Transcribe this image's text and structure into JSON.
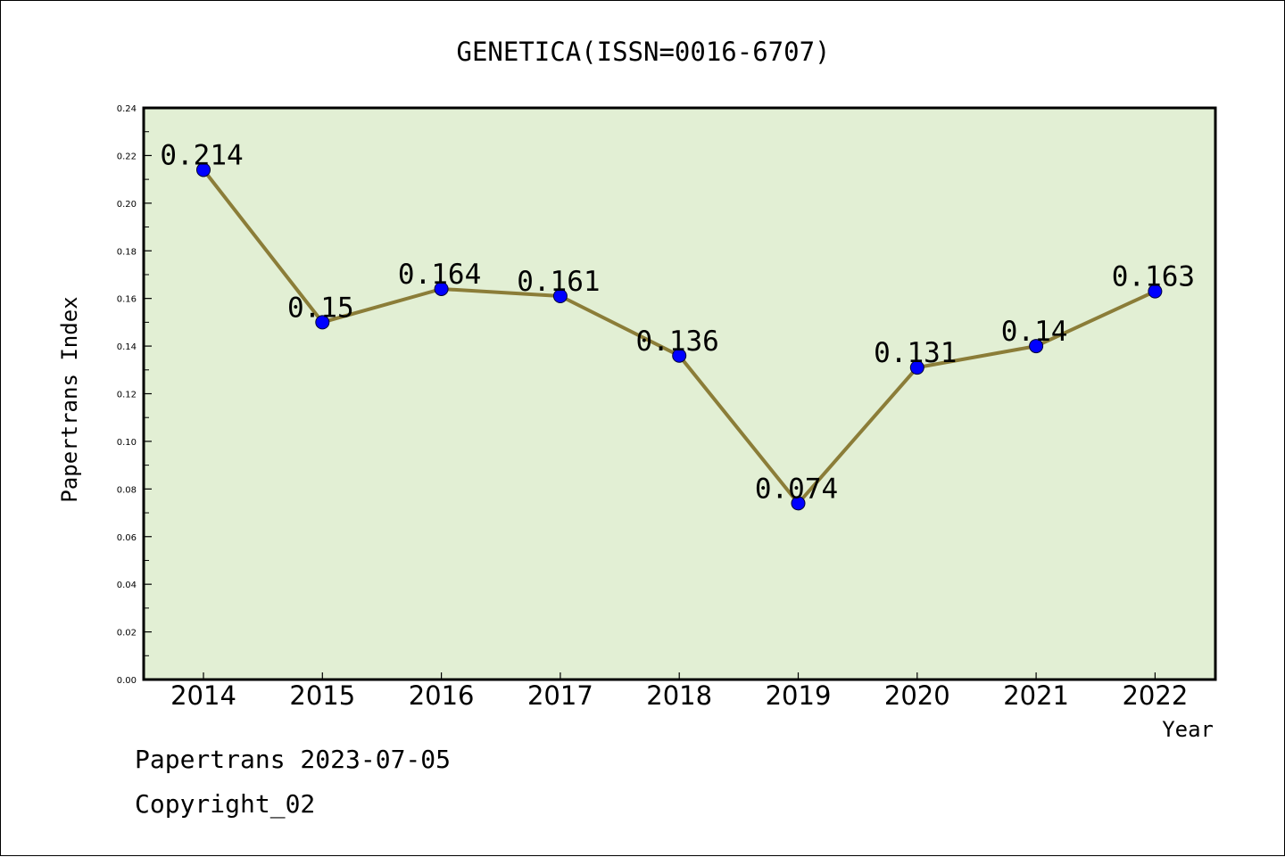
{
  "chart_data": {
    "type": "line",
    "title": "GENETICA(ISSN=0016-6707)",
    "xlabel": "Year",
    "ylabel": "Papertrans Index",
    "categories": [
      "2014",
      "2015",
      "2016",
      "2017",
      "2018",
      "2019",
      "2020",
      "2021",
      "2022"
    ],
    "values": [
      0.214,
      0.15,
      0.164,
      0.161,
      0.136,
      0.074,
      0.131,
      0.14,
      0.163
    ],
    "data_labels": [
      "0.214",
      "0.15",
      "0.164",
      "0.161",
      "0.136",
      "0.074",
      "0.131",
      "0.14",
      "0.163"
    ],
    "ylim": [
      0,
      0.24
    ],
    "yticks": [
      "0.00",
      "0.02",
      "0.04",
      "0.06",
      "0.08",
      "0.10",
      "0.12",
      "0.14",
      "0.16",
      "0.18",
      "0.20",
      "0.22",
      "0.24"
    ],
    "grid": false,
    "colors": {
      "plot_background": "#e2efd4",
      "line": "#8b7d38",
      "marker": "#0000ff"
    }
  },
  "footer": {
    "line1": "Papertrans 2023-07-05",
    "line2": "Copyright_02"
  }
}
